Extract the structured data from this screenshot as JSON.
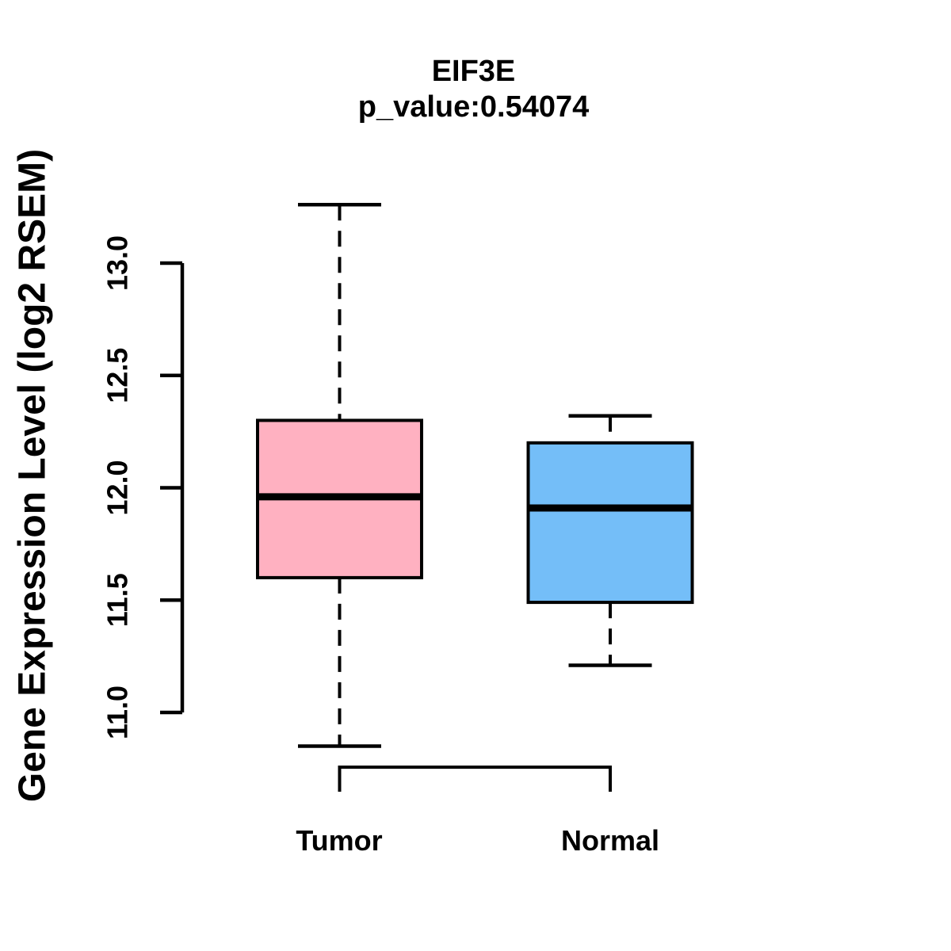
{
  "chart_data": {
    "type": "boxplot",
    "title": "EIF3E",
    "subtitle": "p_value:0.54074",
    "ylabel": "Gene Expression Level (log2 RSEM)",
    "xlabel": "",
    "ylim": [
      11.0,
      13.0
    ],
    "y_ticks": [
      "11.0",
      "11.5",
      "12.0",
      "12.5",
      "13.0"
    ],
    "y_tick_values": [
      11.0,
      11.5,
      12.0,
      12.5,
      13.0
    ],
    "grid": "off",
    "legend": "none",
    "groups": [
      {
        "label": "Tumor",
        "color": "#FFB1C1",
        "whisker_low": 10.85,
        "q1": 11.6,
        "median": 11.96,
        "q3": 12.3,
        "whisker_high": 13.26
      },
      {
        "label": "Normal",
        "color": "#74BEF8",
        "whisker_low": 11.21,
        "q1": 11.49,
        "median": 11.91,
        "q3": 12.2,
        "whisker_high": 12.32
      }
    ],
    "stroke_color": "#000000",
    "background_color": "#FFFFFF"
  }
}
